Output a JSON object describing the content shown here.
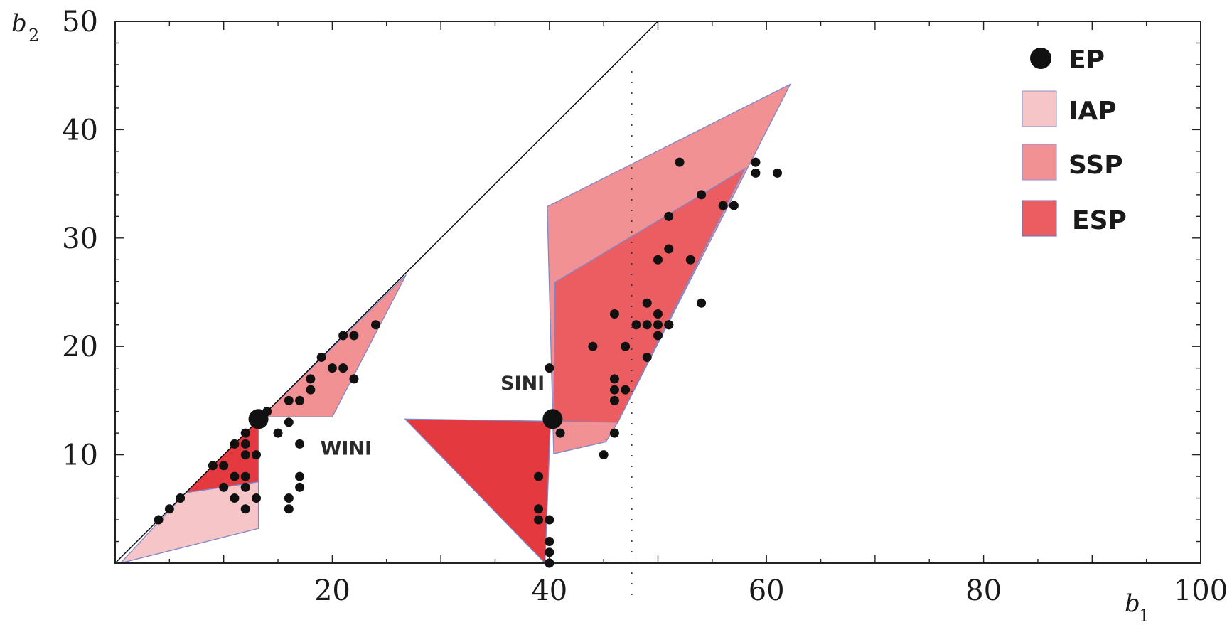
{
  "chart_data": {
    "type": "scatter",
    "xlabel": {
      "main": "b",
      "sub": "1"
    },
    "ylabel": {
      "main": "b",
      "sub": "2"
    },
    "xlim": [
      0,
      100
    ],
    "ylim": [
      0,
      50
    ],
    "x_ticks": [
      20,
      40,
      60,
      80,
      100
    ],
    "y_ticks": [
      10,
      20,
      30,
      40,
      50
    ],
    "grid": false,
    "legend_position": "top-right",
    "legend": [
      {
        "key": "EP",
        "label": "EP",
        "kind": "marker"
      },
      {
        "key": "IAP",
        "label": "IAP",
        "kind": "region"
      },
      {
        "key": "SSP",
        "label": "SSP",
        "kind": "region"
      },
      {
        "key": "ESP",
        "label": "ESP",
        "kind": "region"
      }
    ],
    "annotations": [
      {
        "key": "wini",
        "text": "WINI",
        "at": [
          18.9,
          10
        ]
      },
      {
        "key": "sini",
        "text": "SINI",
        "at": [
          35.5,
          16
        ]
      }
    ],
    "diagonal_line": {
      "from": [
        0,
        0
      ],
      "to": [
        50,
        50
      ]
    },
    "dashed_line_x": 47.6,
    "regions": [
      {
        "name": "IAP",
        "color": "#f6c5c7",
        "points": [
          [
            0.5,
            0
          ],
          [
            13.2,
            3.2
          ],
          [
            13.2,
            7.5
          ],
          [
            6.5,
            6.5
          ]
        ]
      },
      {
        "name": "ESP",
        "color": "#e43a3f",
        "points": [
          [
            6.5,
            6.5
          ],
          [
            13.2,
            13.2
          ],
          [
            13.2,
            7.5
          ]
        ]
      },
      {
        "name": "SSP",
        "color": "#f29194",
        "points": [
          [
            13.2,
            13.2
          ],
          [
            26.8,
            26.6
          ],
          [
            20,
            13.5
          ],
          [
            13.5,
            13.5
          ]
        ]
      },
      {
        "name": "ESP",
        "color": "#e43a3f",
        "points": [
          [
            26.7,
            13.3
          ],
          [
            40.1,
            13.1
          ],
          [
            39.6,
            0
          ]
        ]
      },
      {
        "name": "IAP",
        "color": "#f6c5c7",
        "points": [
          [
            40.4,
            10.1
          ],
          [
            45.2,
            11.2
          ],
          [
            46.3,
            13
          ]
        ]
      },
      {
        "name": "SSP",
        "color": "#f29194",
        "points": [
          [
            39.8,
            32.9
          ],
          [
            62.2,
            44.2
          ],
          [
            46.3,
            13
          ],
          [
            45.2,
            11.2
          ],
          [
            40.4,
            10.1
          ]
        ]
      },
      {
        "name": "ESP",
        "color": "#ec5d62",
        "points": [
          [
            40.5,
            25.9
          ],
          [
            58.0,
            36.4
          ],
          [
            46.3,
            13
          ],
          [
            40.4,
            13.1
          ]
        ]
      }
    ],
    "series": [
      {
        "key": "EP",
        "marker": "large",
        "x": [
          13.2,
          40.3
        ],
        "y": [
          13.3,
          13.3
        ]
      },
      {
        "key": "points",
        "marker": "small",
        "x": [
          4,
          5,
          6,
          9,
          10,
          10,
          11,
          11,
          11,
          12,
          12,
          12,
          12,
          12,
          12,
          13,
          13,
          14,
          15,
          16,
          16,
          16,
          16,
          17,
          17,
          17,
          17,
          18,
          18,
          19,
          20,
          21,
          21,
          22,
          22,
          24,
          39,
          39,
          39,
          40,
          40,
          40,
          40,
          40,
          40,
          41,
          44,
          45,
          46,
          46,
          46,
          46,
          46,
          47,
          47,
          48,
          49,
          49,
          49,
          50,
          50,
          50,
          50,
          51,
          51,
          51,
          51,
          52,
          53,
          54,
          54,
          56,
          57,
          59,
          59,
          61
        ],
        "y": [
          4,
          5,
          6,
          9,
          9,
          7,
          11,
          8,
          6,
          12,
          11,
          10,
          8,
          7,
          5,
          10,
          6,
          14,
          12,
          13,
          15,
          6,
          5,
          15,
          11,
          8,
          7,
          17,
          16,
          19,
          18,
          21,
          18,
          21,
          17,
          22,
          8,
          5,
          4,
          18,
          4,
          2,
          1,
          0,
          0,
          12,
          20,
          10,
          23,
          17,
          16,
          15,
          12,
          20,
          16,
          22,
          24,
          22,
          19,
          23,
          22,
          21,
          28,
          32,
          29,
          22,
          22,
          37,
          28,
          34,
          24,
          33,
          33,
          37,
          36,
          36
        ]
      }
    ]
  }
}
